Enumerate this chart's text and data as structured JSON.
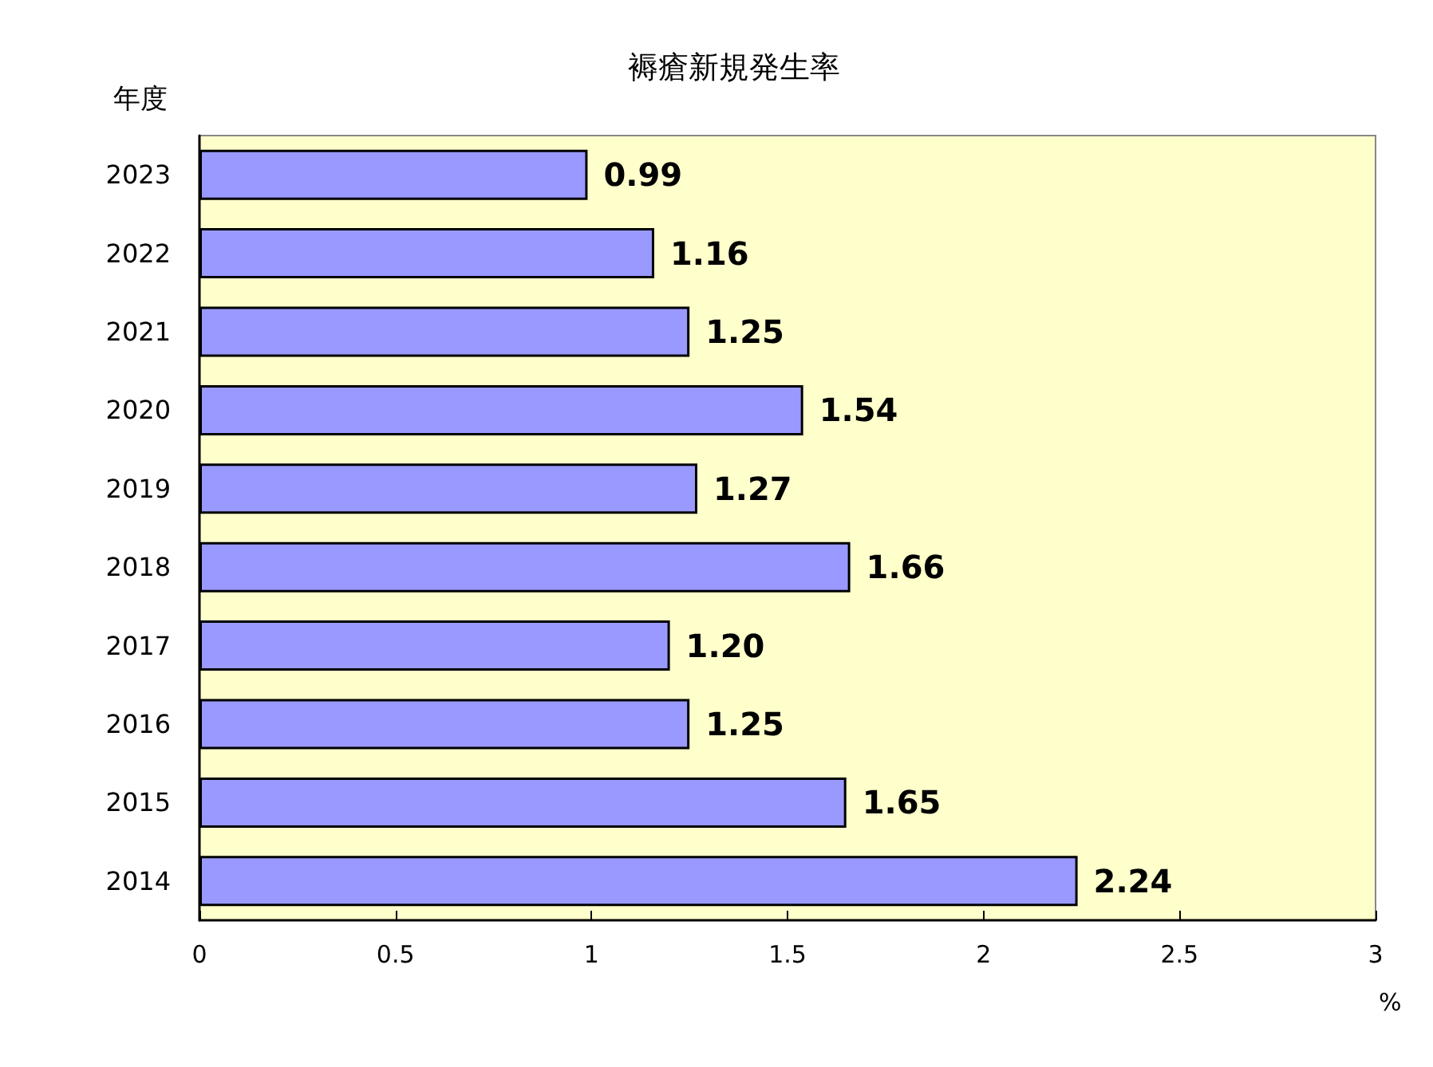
{
  "chart_data": {
    "type": "bar",
    "orientation": "horizontal",
    "title": "褥瘡新規発生率",
    "xlabel": "%",
    "ylabel": "年度",
    "categories": [
      "2023",
      "2022",
      "2021",
      "2020",
      "2019",
      "2018",
      "2017",
      "2016",
      "2015",
      "2014"
    ],
    "values": [
      0.99,
      1.16,
      1.25,
      1.54,
      1.27,
      1.66,
      1.2,
      1.25,
      1.65,
      2.24
    ],
    "color": "#9999ff",
    "value_labels": [
      "0.99",
      "1.16",
      "1.25",
      "1.54",
      "1.27",
      "1.66",
      "1.20",
      "1.25",
      "1.65",
      "2.24"
    ],
    "xlim": [
      0,
      3
    ],
    "xticks": [
      0,
      0.5,
      1,
      1.5,
      2,
      2.5,
      3
    ]
  }
}
